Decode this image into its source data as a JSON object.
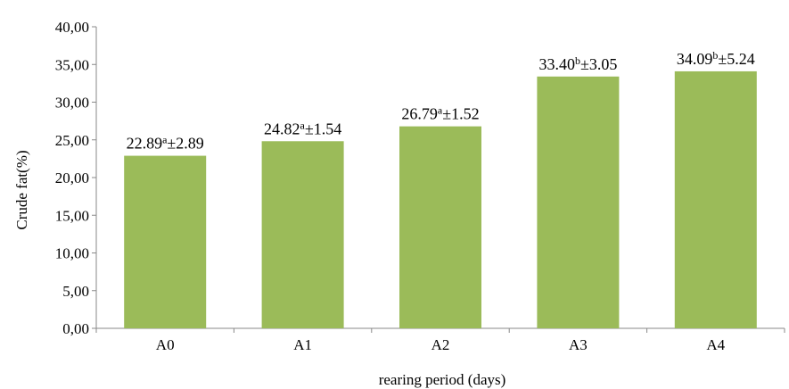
{
  "chart_data": {
    "type": "bar",
    "xlabel": "rearing period (days)",
    "ylabel": "Crude fat(%)",
    "categories": [
      "A0",
      "A1",
      "A2",
      "A3",
      "A4"
    ],
    "values": [
      22.89,
      24.82,
      26.79,
      33.4,
      34.09
    ],
    "labels": [
      {
        "value": "22.89",
        "sup": "a",
        "err": "±2.89"
      },
      {
        "value": "24.82",
        "sup": "a",
        "err": "±1.54"
      },
      {
        "value": "26.79",
        "sup": "a",
        "err": "±1.52"
      },
      {
        "value": "33.40",
        "sup": "b",
        "err": "±3.05"
      },
      {
        "value": "34.09",
        "sup": "b",
        "err": "±5.24"
      }
    ],
    "ylim": [
      0,
      40
    ],
    "yticks": [
      "0,00",
      "5,00",
      "10,00",
      "15,00",
      "20,00",
      "25,00",
      "30,00",
      "35,00",
      "40,00"
    ],
    "grid": false,
    "bar_color": "#9bbb59"
  }
}
